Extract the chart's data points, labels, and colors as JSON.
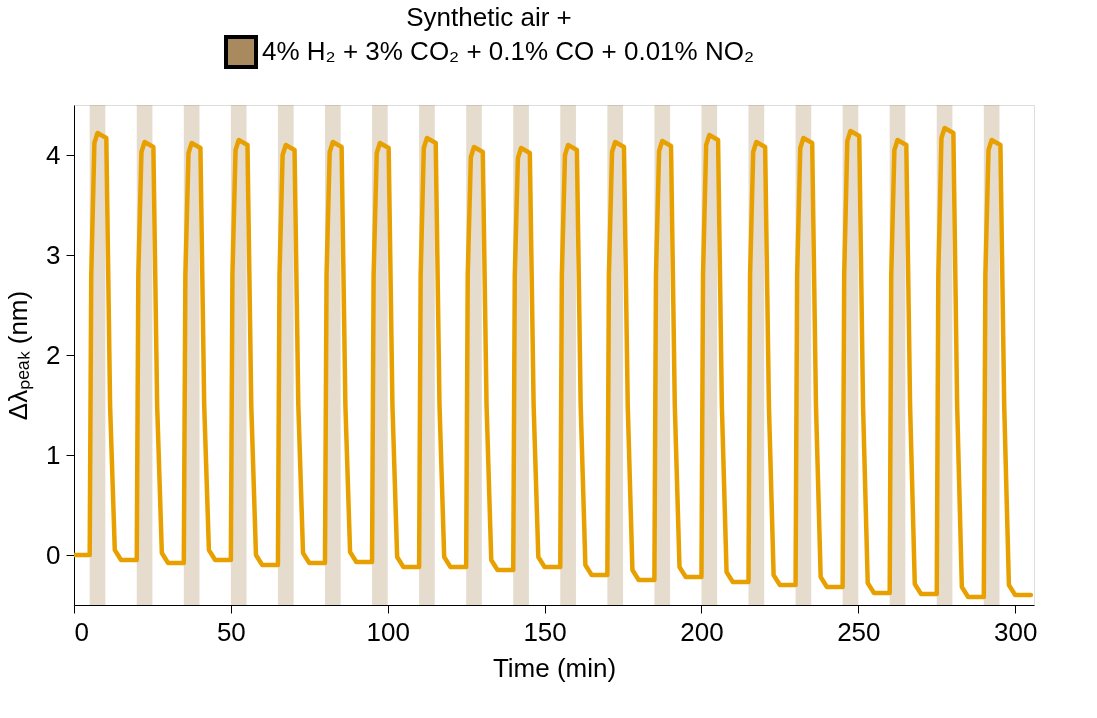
{
  "chart_data": {
    "type": "line",
    "xlabel": "Time (min)",
    "ylabel": "Δλₚₑₐₖ (nm)",
    "legend_title": "Synthetic air +",
    "xlim": [
      0,
      306
    ],
    "ylim": [
      -0.5,
      4.5
    ],
    "xticks": [
      0,
      50,
      100,
      150,
      200,
      250,
      300
    ],
    "yticks": [
      0,
      1,
      2,
      3,
      4
    ],
    "grid": false,
    "legend": "top",
    "line_style": "solid",
    "marker": "none",
    "series": [
      {
        "color": "#e8a000",
        "x": [
          0,
          5,
          5.5,
          6.5,
          7.5,
          10.3,
          11.5,
          13,
          15,
          20,
          20.5,
          21.5,
          22.5,
          25.3,
          26.5,
          28,
          30,
          35,
          35.5,
          36.5,
          37.5,
          40.3,
          41.5,
          43,
          45,
          50,
          50.5,
          51.5,
          52.5,
          55.3,
          56.5,
          58,
          60,
          65,
          65.5,
          66.5,
          67.5,
          70.3,
          71.5,
          73,
          75,
          80,
          80.5,
          81.5,
          82.5,
          85.3,
          86.5,
          88,
          90,
          95,
          95.5,
          96.5,
          97.5,
          100.3,
          101.5,
          103,
          105,
          110,
          110.5,
          111.5,
          112.5,
          115.3,
          116.5,
          118,
          120,
          125,
          125.5,
          126.5,
          127.5,
          130.3,
          131.5,
          133,
          135,
          140,
          140.5,
          141.5,
          142.5,
          145.3,
          146.5,
          148,
          150,
          155,
          155.5,
          156.5,
          157.5,
          160.3,
          161.5,
          163,
          165,
          170,
          170.5,
          171.5,
          172.5,
          175.3,
          176.5,
          178,
          180,
          185,
          185.5,
          186.5,
          187.5,
          190.3,
          191.5,
          193,
          195,
          200,
          200.5,
          201.5,
          202.5,
          205.3,
          206.5,
          208,
          210,
          215,
          215.5,
          216.5,
          217.5,
          220.3,
          221.5,
          223,
          225,
          230,
          230.5,
          231.5,
          232.5,
          235.3,
          236.5,
          238,
          240,
          245,
          245.5,
          246.5,
          247.5,
          250.3,
          251.5,
          253,
          255,
          260,
          260.5,
          261.5,
          262.5,
          265.3,
          266.5,
          268,
          270,
          275,
          275.5,
          276.5,
          277.5,
          280.3,
          281.5,
          283,
          285,
          290,
          290.5,
          291.5,
          292.5,
          295.3,
          296.5,
          298,
          300,
          305
        ],
        "values": [
          0,
          0.0,
          2.8,
          4.12,
          4.22,
          4.17,
          1.5,
          0.05,
          -0.05,
          -0.05,
          2.8,
          4.03,
          4.13,
          4.08,
          1.5,
          0.02,
          -0.08,
          -0.08,
          2.8,
          4.02,
          4.12,
          4.07,
          1.5,
          0.05,
          -0.05,
          -0.05,
          2.8,
          4.05,
          4.15,
          4.1,
          1.5,
          0,
          -0.1,
          -0.1,
          2.8,
          4.0,
          4.1,
          4.05,
          1.5,
          0.02,
          -0.08,
          -0.08,
          2.8,
          4.03,
          4.13,
          4.08,
          1.5,
          0.03,
          -0.07,
          -0.07,
          2.8,
          4.02,
          4.12,
          4.07,
          1.5,
          -0.02,
          -0.12,
          -0.12,
          2.8,
          4.07,
          4.17,
          4.12,
          1.5,
          -0.02,
          -0.12,
          -0.12,
          2.8,
          3.98,
          4.08,
          4.03,
          1.5,
          -0.05,
          -0.15,
          -0.15,
          2.8,
          3.97,
          4.07,
          4.02,
          1.5,
          -0.02,
          -0.12,
          -0.12,
          2.8,
          4.0,
          4.1,
          4.05,
          1.5,
          -0.1,
          -0.2,
          -0.2,
          2.8,
          4.03,
          4.13,
          4.08,
          1.5,
          -0.15,
          -0.25,
          -0.25,
          2.8,
          4.04,
          4.14,
          4.09,
          1.5,
          -0.12,
          -0.22,
          -0.22,
          2.8,
          4.1,
          4.2,
          4.15,
          1.5,
          -0.17,
          -0.27,
          -0.27,
          2.8,
          4.03,
          4.13,
          4.08,
          1.5,
          -0.2,
          -0.3,
          -0.3,
          2.8,
          4.07,
          4.17,
          4.12,
          1.5,
          -0.22,
          -0.32,
          -0.32,
          2.8,
          4.14,
          4.24,
          4.19,
          1.5,
          -0.28,
          -0.38,
          -0.38,
          2.8,
          4.05,
          4.15,
          4.1,
          1.5,
          -0.29,
          -0.39,
          -0.39,
          2.8,
          4.17,
          4.27,
          4.22,
          1.5,
          -0.32,
          -0.42,
          -0.42,
          2.8,
          4.05,
          4.15,
          4.1,
          1.5,
          -0.3,
          -0.4,
          -0.4
        ]
      }
    ],
    "bands": [
      {
        "axis": "x",
        "from": 5,
        "to": 10,
        "label": "4% H₂ + 3% CO₂ + 0.1% CO + 0.01% NO₂",
        "color": "#a88a5e"
      },
      {
        "axis": "x",
        "from": 20,
        "to": 25,
        "color": "#a88a5e"
      },
      {
        "axis": "x",
        "from": 35,
        "to": 40,
        "color": "#a88a5e"
      },
      {
        "axis": "x",
        "from": 50,
        "to": 55,
        "color": "#a88a5e"
      },
      {
        "axis": "x",
        "from": 65,
        "to": 70,
        "color": "#a88a5e"
      },
      {
        "axis": "x",
        "from": 80,
        "to": 85,
        "color": "#a88a5e"
      },
      {
        "axis": "x",
        "from": 95,
        "to": 100,
        "color": "#a88a5e"
      },
      {
        "axis": "x",
        "from": 110,
        "to": 115,
        "color": "#a88a5e"
      },
      {
        "axis": "x",
        "from": 125,
        "to": 130,
        "color": "#a88a5e"
      },
      {
        "axis": "x",
        "from": 140,
        "to": 145,
        "color": "#a88a5e"
      },
      {
        "axis": "x",
        "from": 155,
        "to": 160,
        "color": "#a88a5e"
      },
      {
        "axis": "x",
        "from": 170,
        "to": 175,
        "color": "#a88a5e"
      },
      {
        "axis": "x",
        "from": 185,
        "to": 190,
        "color": "#a88a5e"
      },
      {
        "axis": "x",
        "from": 200,
        "to": 205,
        "color": "#a88a5e"
      },
      {
        "axis": "x",
        "from": 215,
        "to": 220,
        "color": "#a88a5e"
      },
      {
        "axis": "x",
        "from": 230,
        "to": 235,
        "color": "#a88a5e"
      },
      {
        "axis": "x",
        "from": 245,
        "to": 250,
        "color": "#a88a5e"
      },
      {
        "axis": "x",
        "from": 260,
        "to": 265,
        "color": "#a88a5e"
      },
      {
        "axis": "x",
        "from": 275,
        "to": 280,
        "color": "#a88a5e"
      },
      {
        "axis": "x",
        "from": 290,
        "to": 295,
        "color": "#a88a5e"
      }
    ]
  }
}
